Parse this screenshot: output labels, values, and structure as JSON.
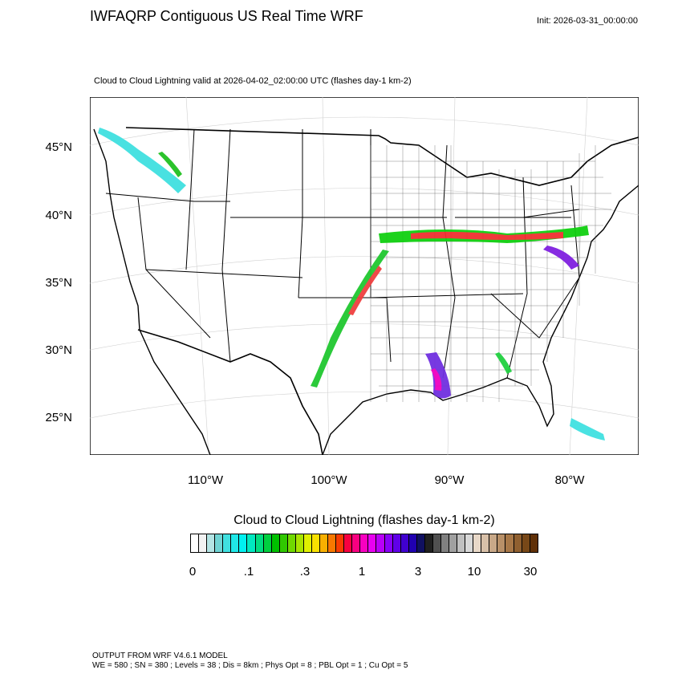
{
  "header": {
    "title": "IWFAQRP Contiguous US Real Time WRF",
    "init": "Init: 2026-03-31_00:00:00",
    "subtitle": "Cloud to Cloud Lightning valid at 2026-04-02_02:00:00 UTC   (flashes day-1 km-2)"
  },
  "map": {
    "lat_labels": [
      "45°N",
      "40°N",
      "35°N",
      "30°N",
      "25°N"
    ],
    "lon_labels": [
      "110°W",
      "100°W",
      "90°W",
      "80°W"
    ],
    "colors": {
      "land": "#ffffff",
      "border": "#000000",
      "grid": "#cccccc"
    }
  },
  "colorbar": {
    "title": "Cloud to Cloud Lightning  (flashes day-1 km-2)",
    "labels": [
      "0",
      ".1",
      ".3",
      "1",
      "3",
      "10",
      "30"
    ],
    "colors": [
      "#ffffff",
      "#f2f2f2",
      "#b4e4e4",
      "#70d4d4",
      "#40e0e0",
      "#20e8e8",
      "#00f0f0",
      "#00e8c0",
      "#00dc80",
      "#00d040",
      "#00c000",
      "#30c800",
      "#70d800",
      "#a8e400",
      "#e0f000",
      "#f8e000",
      "#f8b000",
      "#f87800",
      "#f83c00",
      "#f80040",
      "#f80080",
      "#f800c0",
      "#e800f0",
      "#b800f8",
      "#8800f8",
      "#6000e8",
      "#4000d0",
      "#2000b0",
      "#101060",
      "#202020",
      "#505050",
      "#808080",
      "#a0a0a0",
      "#c0c0c0",
      "#d8d8d8",
      "#e8d8c8",
      "#d8c0a8",
      "#c8a888",
      "#b89068",
      "#a87848",
      "#906030",
      "#784818",
      "#603008"
    ]
  },
  "footer": {
    "line1": "OUTPUT FROM WRF V4.6.1 MODEL",
    "line2": "WE = 580 ; SN = 380 ; Levels = 38 ; Dis = 8km ; Phys Opt = 8 ; PBL Opt = 1 ; Cu Opt = 5"
  }
}
